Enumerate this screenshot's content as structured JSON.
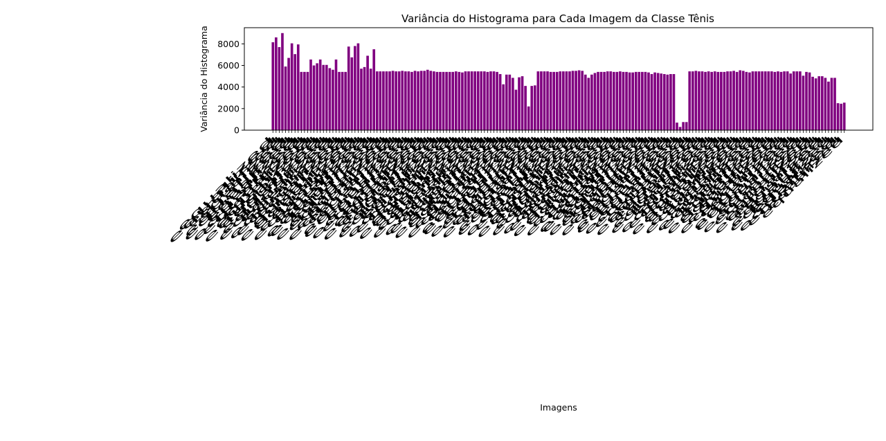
{
  "chart_data": {
    "type": "bar",
    "title": "Variância do Histograma para Cada Imagem da Classe Tênis",
    "xlabel": "Imagens",
    "ylabel": "Variância do Histograma",
    "ylim": [
      0,
      9500
    ],
    "yticks": [
      0,
      2000,
      4000,
      6000,
      8000
    ],
    "grid": false,
    "bar_color": "#800080",
    "x_tick_label_prefix": "equalized",
    "x_tick_label_rotation_deg": -45,
    "values": [
      8150,
      8600,
      7700,
      9000,
      5900,
      6700,
      8050,
      7050,
      7950,
      5400,
      5400,
      5400,
      6550,
      6000,
      6200,
      6550,
      6050,
      6050,
      5750,
      5600,
      6550,
      5400,
      5400,
      5400,
      7750,
      6750,
      7800,
      8050,
      5700,
      5850,
      6900,
      5700,
      7500,
      5450,
      5450,
      5450,
      5450,
      5450,
      5500,
      5450,
      5450,
      5500,
      5450,
      5450,
      5400,
      5500,
      5450,
      5500,
      5500,
      5600,
      5500,
      5450,
      5400,
      5400,
      5400,
      5400,
      5400,
      5400,
      5450,
      5400,
      5350,
      5450,
      5450,
      5450,
      5450,
      5450,
      5450,
      5450,
      5400,
      5450,
      5450,
      5400,
      5200,
      4250,
      5150,
      5150,
      4850,
      3750,
      4900,
      5000,
      4100,
      2200,
      4100,
      4150,
      5450,
      5450,
      5450,
      5450,
      5400,
      5400,
      5400,
      5450,
      5450,
      5450,
      5450,
      5500,
      5500,
      5550,
      5500,
      5150,
      4850,
      5150,
      5300,
      5400,
      5400,
      5400,
      5450,
      5450,
      5400,
      5400,
      5450,
      5400,
      5400,
      5350,
      5350,
      5400,
      5400,
      5400,
      5400,
      5350,
      5200,
      5350,
      5300,
      5250,
      5200,
      5150,
      5200,
      5200,
      700,
      300,
      750,
      750,
      5450,
      5450,
      5500,
      5450,
      5450,
      5400,
      5450,
      5400,
      5450,
      5400,
      5400,
      5400,
      5450,
      5450,
      5500,
      5400,
      5550,
      5500,
      5400,
      5350,
      5450,
      5450,
      5450,
      5450,
      5450,
      5450,
      5450,
      5400,
      5450,
      5400,
      5450,
      5450,
      5250,
      5450,
      5450,
      5450,
      5050,
      5400,
      5350,
      4950,
      4800,
      5000,
      5000,
      4850,
      4500,
      4850,
      4850,
      2500,
      2450,
      2550
    ]
  }
}
